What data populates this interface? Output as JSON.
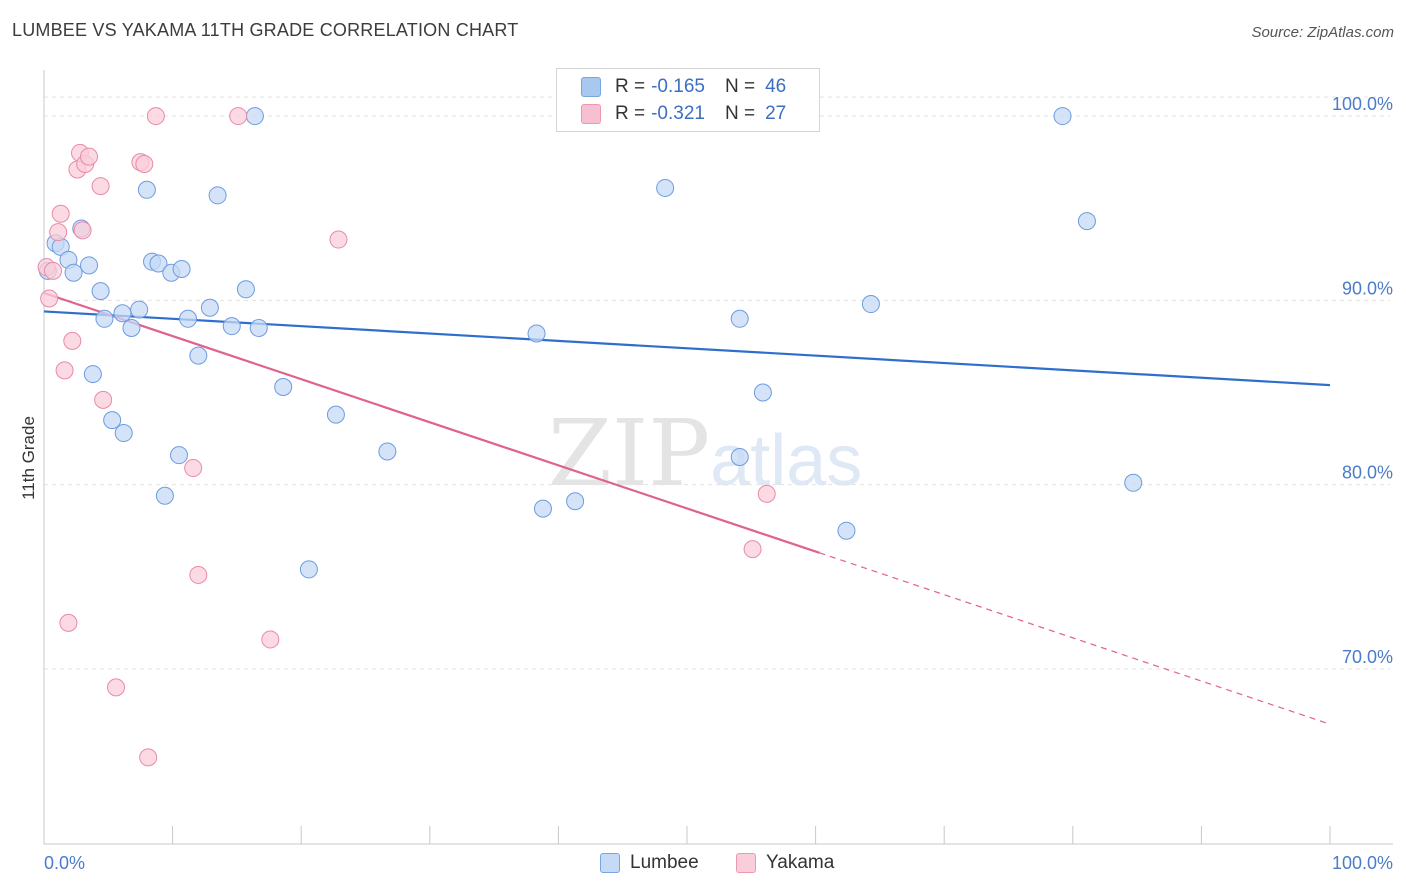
{
  "header": {
    "title": "LUMBEE VS YAKAMA 11TH GRADE CORRELATION CHART",
    "source": "Source: ZipAtlas.com"
  },
  "watermark": {
    "zip": "ZIP",
    "atlas": "atlas"
  },
  "legend": {
    "rows": [
      {
        "r_label": "R =",
        "r_value": "-0.165",
        "n_label": "N =",
        "n_value": "46",
        "color": "#a9c8f0",
        "border": "#7aa6e0"
      },
      {
        "r_label": "R =",
        "r_value": "-0.321",
        "n_label": "N =",
        "n_value": "27",
        "color": "#f7c0d0",
        "border": "#ee97b0"
      }
    ]
  },
  "bottom_legend": {
    "lumbee": "Lumbee",
    "yakama": "Yakama"
  },
  "colors": {
    "lumbee_fill": "#c5daf5",
    "lumbee_stroke": "#6d9ce0",
    "lumbee_line": "#2f6fcc",
    "yakama_fill": "#f9cdda",
    "yakama_stroke": "#ea8aa8",
    "yakama_line": "#e0628e"
  },
  "chart_data": {
    "type": "scatter",
    "title": "LUMBEE VS YAKAMA 11TH GRADE CORRELATION CHART",
    "xlabel": "",
    "ylabel": "11th Grade",
    "xlim": [
      0,
      100
    ],
    "ylim": [
      60.5,
      102.5
    ],
    "x_tick_labels": [
      "0.0%",
      "100.0%"
    ],
    "y_ticks": [
      70,
      80,
      90,
      100
    ],
    "y_tick_labels": [
      "70.0%",
      "80.0%",
      "90.0%",
      "100.0%"
    ],
    "grid": true,
    "legend_position": "top-center",
    "series": [
      {
        "name": "Lumbee",
        "points": [
          [
            0.3,
            91.6
          ],
          [
            0.9,
            93.1
          ],
          [
            1.3,
            92.9
          ],
          [
            1.9,
            92.2
          ],
          [
            2.3,
            91.5
          ],
          [
            2.9,
            93.9
          ],
          [
            3.5,
            91.9
          ],
          [
            3.8,
            86.0
          ],
          [
            4.4,
            90.5
          ],
          [
            4.7,
            89.0
          ],
          [
            5.3,
            83.5
          ],
          [
            6.1,
            89.3
          ],
          [
            6.2,
            82.8
          ],
          [
            6.8,
            88.5
          ],
          [
            7.4,
            89.5
          ],
          [
            8.0,
            96.0
          ],
          [
            8.4,
            92.1
          ],
          [
            8.9,
            92.0
          ],
          [
            9.4,
            79.4
          ],
          [
            9.9,
            91.5
          ],
          [
            10.5,
            81.6
          ],
          [
            10.7,
            91.7
          ],
          [
            11.2,
            89.0
          ],
          [
            12.0,
            87.0
          ],
          [
            12.9,
            89.6
          ],
          [
            13.5,
            95.7
          ],
          [
            14.6,
            88.6
          ],
          [
            15.7,
            90.6
          ],
          [
            16.4,
            100.0
          ],
          [
            16.7,
            88.5
          ],
          [
            18.6,
            85.3
          ],
          [
            20.6,
            75.4
          ],
          [
            22.7,
            83.8
          ],
          [
            26.7,
            81.8
          ],
          [
            38.3,
            88.2
          ],
          [
            38.8,
            78.7
          ],
          [
            41.3,
            79.1
          ],
          [
            48.3,
            96.1
          ],
          [
            54.1,
            89.0
          ],
          [
            54.1,
            81.5
          ],
          [
            55.9,
            85.0
          ],
          [
            62.4,
            77.5
          ],
          [
            64.3,
            89.8
          ],
          [
            79.2,
            100.0
          ],
          [
            81.1,
            94.3
          ],
          [
            84.7,
            80.1
          ]
        ]
      },
      {
        "name": "Yakama",
        "points": [
          [
            0.2,
            91.8
          ],
          [
            0.4,
            90.1
          ],
          [
            0.7,
            91.6
          ],
          [
            1.1,
            93.7
          ],
          [
            1.3,
            94.7
          ],
          [
            1.6,
            86.2
          ],
          [
            1.9,
            72.5
          ],
          [
            2.2,
            87.8
          ],
          [
            2.6,
            97.1
          ],
          [
            2.8,
            98.0
          ],
          [
            3.0,
            93.8
          ],
          [
            3.2,
            97.4
          ],
          [
            3.5,
            97.8
          ],
          [
            4.4,
            96.2
          ],
          [
            4.6,
            84.6
          ],
          [
            5.6,
            69.0
          ],
          [
            7.5,
            97.5
          ],
          [
            7.8,
            97.4
          ],
          [
            8.1,
            65.2
          ],
          [
            8.7,
            100.0
          ],
          [
            11.6,
            80.9
          ],
          [
            12.0,
            75.1
          ],
          [
            15.1,
            100.0
          ],
          [
            17.6,
            71.6
          ],
          [
            22.9,
            93.3
          ],
          [
            55.1,
            76.5
          ],
          [
            56.2,
            79.5
          ]
        ]
      }
    ],
    "trendlines": [
      {
        "series": "Lumbee",
        "x": [
          0,
          100
        ],
        "y": [
          89.4,
          85.4
        ]
      },
      {
        "series": "Yakama",
        "x": [
          0,
          60.3
        ],
        "y": [
          90.4,
          76.3
        ],
        "dashed_x": [
          60.3,
          100
        ],
        "dashed_y": [
          76.3,
          67.0
        ]
      }
    ]
  }
}
